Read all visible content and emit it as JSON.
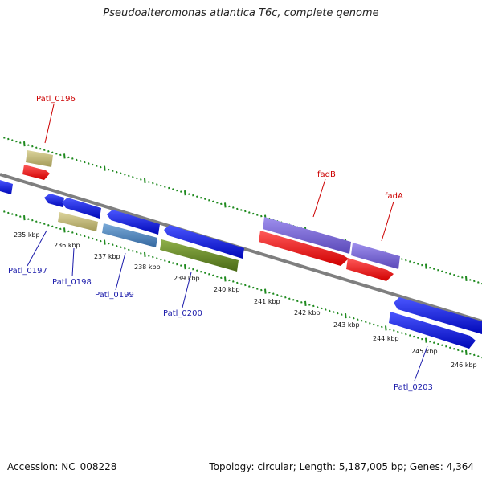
{
  "title": "Pseudoalteromonas atlantica T6c, complete genome",
  "footer": {
    "accession": "Accession: NC_008228",
    "stats": "Topology: circular; Length: 5,187,005 bp; Genes: 4,364"
  },
  "colors": {
    "backbone": "#7f7f7f",
    "tick": "#1f8a1f",
    "label_red": "#cc0000",
    "label_blue": "#1a1aaa",
    "blue_gene": "#0a14e6",
    "red_gene": "#ff1a1a",
    "purple_gene": "#7a66d6",
    "khaki_gene": "#c8bd78",
    "steel_gene": "#4f86c0",
    "olive_gene": "#6b8f2a"
  },
  "kbp_labels": [
    "235 kbp",
    "236 kbp",
    "237 kbp",
    "238 kbp",
    "239 kbp",
    "240 kbp",
    "241 kbp",
    "242 kbp",
    "243 kbp",
    "244 kbp",
    "245 kbp",
    "246 kbp"
  ],
  "genes": [
    {
      "id": "fadB",
      "color": "purple"
    },
    {
      "id": "fadA",
      "color": "purple"
    },
    {
      "id": "Patl_0196",
      "color": "khaki"
    },
    {
      "id": "Patl_0197",
      "color": "blue"
    },
    {
      "id": "Patl_0198",
      "color": "khaki"
    },
    {
      "id": "Patl_0199",
      "color": "steel"
    },
    {
      "id": "Patl_0200",
      "color": "olive"
    },
    {
      "id": "Patl_0203",
      "color": "blue"
    }
  ],
  "labels": {
    "top": [
      "Patl_0196",
      "fadB",
      "fadA"
    ],
    "bottom": [
      "Patl_0197",
      "Patl_0198",
      "Patl_0199",
      "Patl_0200",
      "Patl_0203"
    ]
  }
}
